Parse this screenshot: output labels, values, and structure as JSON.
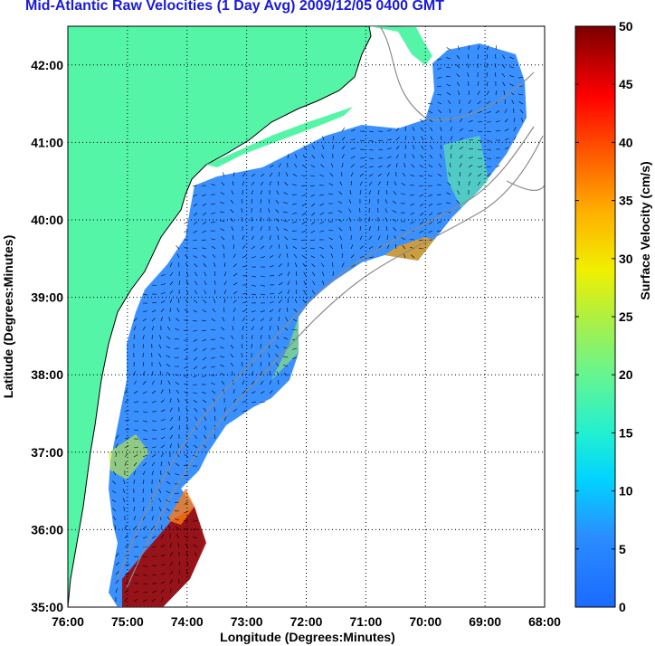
{
  "title": "Mid-Atlantic Raw Velocities (1 Day Avg) 2009/12/05 0400 GMT",
  "map": {
    "xlabel": "Longitude (Degrees:Minutes)",
    "ylabel": "Latitude (Degrees:Minutes)",
    "lon_ticks": [
      "76:00",
      "75:00",
      "74:00",
      "73:00",
      "72:00",
      "71:00",
      "70:00",
      "69:00",
      "68:00"
    ],
    "lat_ticks": [
      "42:00",
      "41:00",
      "40:00",
      "39:00",
      "38:00",
      "37:00",
      "36:00",
      "35:00"
    ],
    "lon_range": [
      -76,
      -68
    ],
    "lat_range": [
      35,
      42.5
    ],
    "land_color": "#55f5a8",
    "vector_color": "#000000",
    "bathymetry_color": "#8c8c8c"
  },
  "colorbar": {
    "label": "Surface Velocity (cm/s)",
    "ticks": [
      "0",
      "5",
      "10",
      "15",
      "20",
      "25",
      "30",
      "35",
      "40",
      "45",
      "50"
    ],
    "min": 0,
    "max": 50,
    "colormap": "jet"
  }
}
